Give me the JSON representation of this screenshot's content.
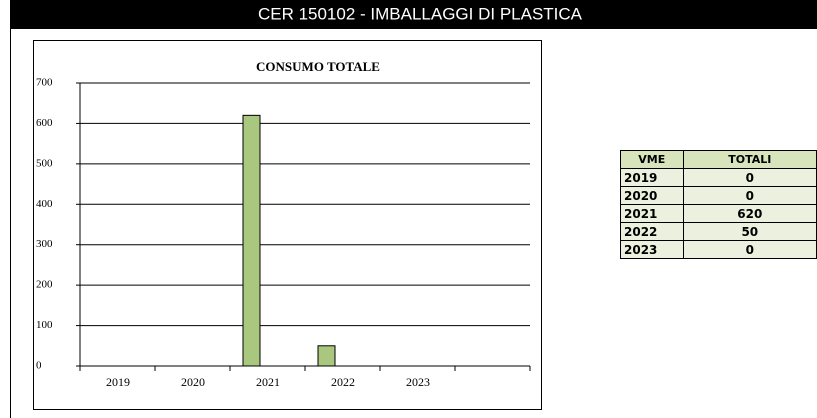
{
  "header": {
    "title": "CER 150102 - IMBALLAGGI DI PLASTICA"
  },
  "chart_data": {
    "type": "bar",
    "title": "CONSUMO TOTALE",
    "categories": [
      "2019",
      "2020",
      "2021",
      "2022",
      "2023"
    ],
    "values": [
      0,
      0,
      620,
      50,
      0
    ],
    "color": "#a9c77e",
    "ylim": [
      0,
      700
    ],
    "yticks": [
      0,
      100,
      200,
      300,
      400,
      500,
      600,
      700
    ],
    "grid": true
  },
  "table": {
    "columns": [
      "VME",
      "TOTALI"
    ],
    "rows": [
      [
        "2019",
        0
      ],
      [
        "2020",
        0
      ],
      [
        "2021",
        620
      ],
      [
        "2022",
        50
      ],
      [
        "2023",
        0
      ]
    ]
  }
}
